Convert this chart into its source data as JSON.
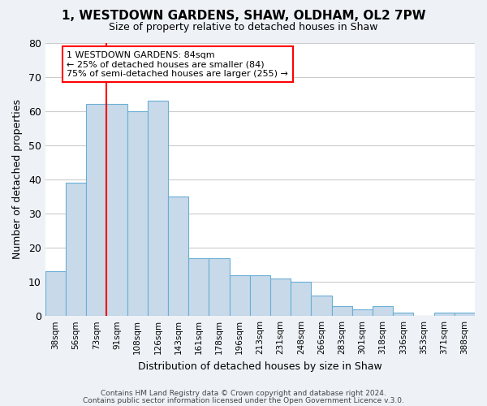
{
  "title": "1, WESTDOWN GARDENS, SHAW, OLDHAM, OL2 7PW",
  "subtitle": "Size of property relative to detached houses in Shaw",
  "xlabel": "Distribution of detached houses by size in Shaw",
  "ylabel": "Number of detached properties",
  "bar_values": [
    13,
    39,
    62,
    62,
    60,
    63,
    35,
    17,
    17,
    12,
    12,
    11,
    10,
    6,
    3,
    2,
    3,
    1,
    0,
    1,
    1
  ],
  "bin_labels": [
    "38sqm",
    "56sqm",
    "73sqm",
    "91sqm",
    "108sqm",
    "126sqm",
    "143sqm",
    "161sqm",
    "178sqm",
    "196sqm",
    "213sqm",
    "231sqm",
    "248sqm",
    "266sqm",
    "283sqm",
    "301sqm",
    "318sqm",
    "336sqm",
    "353sqm",
    "371sqm",
    "388sqm"
  ],
  "bar_color": "#c8daea",
  "bar_edge_color": "#6aaed6",
  "ylim": [
    0,
    80
  ],
  "yticks": [
    0,
    10,
    20,
    30,
    40,
    50,
    60,
    70,
    80
  ],
  "annotation_title": "1 WESTDOWN GARDENS: 84sqm",
  "annotation_line1": "← 25% of detached houses are smaller (84)",
  "annotation_line2": "75% of semi-detached houses are larger (255) →",
  "footer1": "Contains HM Land Registry data © Crown copyright and database right 2024.",
  "footer2": "Contains public sector information licensed under the Open Government Licence v.3.0.",
  "background_color": "#eef2f7",
  "plot_bg_color": "#ffffff"
}
